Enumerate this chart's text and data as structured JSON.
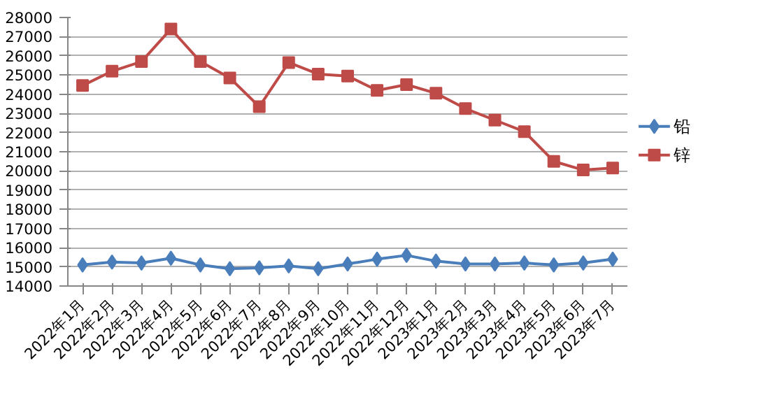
{
  "chart_data": {
    "type": "line",
    "categories": [
      "2022年1月",
      "2022年2月",
      "2022年3月",
      "2022年4月",
      "2022年5月",
      "2022年6月",
      "2022年7月",
      "2022年8月",
      "2022年9月",
      "2022年10月",
      "2022年11月",
      "2022年12月",
      "2023年1月",
      "2023年2月",
      "2023年3月",
      "2023年4月",
      "2023年5月",
      "2023年6月",
      "2023年7月"
    ],
    "series": [
      {
        "name": "铅",
        "color": "#4a7ebb",
        "marker": "diamond",
        "values": [
          15100,
          15250,
          15200,
          15450,
          15100,
          14900,
          14950,
          15050,
          14900,
          15150,
          15400,
          15600,
          15300,
          15150,
          15150,
          15200,
          15100,
          15200,
          15400
        ]
      },
      {
        "name": "锌",
        "color": "#be4b48",
        "marker": "square",
        "values": [
          24450,
          25200,
          25700,
          27400,
          25700,
          24850,
          23350,
          25650,
          25050,
          24950,
          24200,
          24500,
          24050,
          23250,
          22650,
          22050,
          20500,
          20050,
          20150
        ]
      }
    ],
    "ylim": [
      14000,
      28000
    ],
    "yticks": [
      14000,
      15000,
      16000,
      17000,
      18000,
      19000,
      20000,
      21000,
      22000,
      23000,
      24000,
      25000,
      26000,
      27000,
      28000
    ],
    "grid": "y",
    "legend": "right"
  }
}
